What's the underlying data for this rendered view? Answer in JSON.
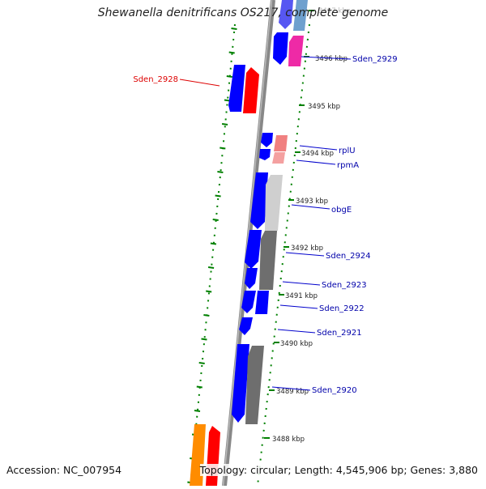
{
  "title": "Shewanella denitrificans OS217, complete genome",
  "footer": {
    "accession": "Accession: NC_007954",
    "topology": "Topology: circular; Length: 4,545,906 bp; Genes: 3,880"
  },
  "ticks": [
    {
      "label": "3497 kbp",
      "faded": true
    },
    {
      "label": "3496 kbp"
    },
    {
      "label": "3495 kbp"
    },
    {
      "label": "3494 kbp"
    },
    {
      "label": "3493 kbp"
    },
    {
      "label": "3492 kbp"
    },
    {
      "label": "3491 kbp"
    },
    {
      "label": "3490 kbp"
    },
    {
      "label": "3489 kbp"
    },
    {
      "label": "3488 kbp"
    }
  ],
  "gene_labels": [
    {
      "name": "Sden_2929",
      "color": "#0000aa"
    },
    {
      "name": "Sden_2928",
      "color": "#dd0000"
    },
    {
      "name": "rplU",
      "color": "#0000aa"
    },
    {
      "name": "rpmA",
      "color": "#0000aa"
    },
    {
      "name": "obgE",
      "color": "#0000aa"
    },
    {
      "name": "Sden_2924",
      "color": "#0000aa"
    },
    {
      "name": "Sden_2923",
      "color": "#0000aa"
    },
    {
      "name": "Sden_2922",
      "color": "#0000aa"
    },
    {
      "name": "Sden_2921",
      "color": "#0000aa"
    },
    {
      "name": "Sden_2920",
      "color": "#0000aa"
    }
  ],
  "colors": {
    "gene": "#0000ff",
    "backbone": "#8a8a8a",
    "tick": "#008000",
    "label_line": "#0000cc",
    "highlight_line": "#dd0000"
  }
}
